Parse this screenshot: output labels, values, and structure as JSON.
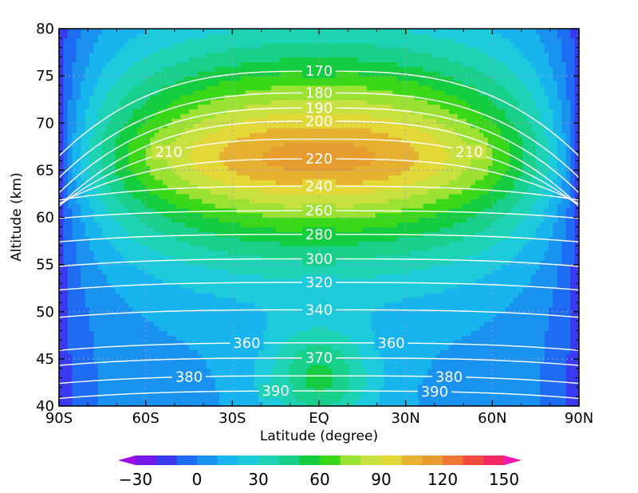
{
  "chart_data": {
    "type": "heatmap",
    "title": "",
    "xlabel": "Latitude (degree)",
    "ylabel": "Altitude (km)",
    "xlim": [
      -90,
      90
    ],
    "ylim": [
      40,
      80
    ],
    "x_ticks": [
      {
        "value": -90,
        "label": "90S"
      },
      {
        "value": -60,
        "label": "60S"
      },
      {
        "value": -30,
        "label": "30S"
      },
      {
        "value": 0,
        "label": "EQ"
      },
      {
        "value": 30,
        "label": "30N"
      },
      {
        "value": 60,
        "label": "60N"
      },
      {
        "value": 90,
        "label": "90N"
      }
    ],
    "y_ticks": [
      {
        "value": 40,
        "label": "40"
      },
      {
        "value": 45,
        "label": "45"
      },
      {
        "value": 50,
        "label": "50"
      },
      {
        "value": 55,
        "label": "55"
      },
      {
        "value": 60,
        "label": "60"
      },
      {
        "value": 65,
        "label": "65"
      },
      {
        "value": 70,
        "label": "70"
      },
      {
        "value": 75,
        "label": "75"
      },
      {
        "value": 80,
        "label": "80"
      }
    ],
    "grid": true,
    "shading": {
      "levels": [
        -30,
        -20,
        -10,
        0,
        10,
        20,
        30,
        40,
        50,
        60,
        70,
        80,
        90,
        100,
        110,
        120,
        130,
        140,
        150
      ],
      "colors": [
        "#a010e6",
        "#7818e8",
        "#3a3af0",
        "#1e6cf2",
        "#1a92f0",
        "#18b4ee",
        "#1ccadc",
        "#1ed2b4",
        "#18d08a",
        "#14cc40",
        "#3ad818",
        "#9ce234",
        "#c8e040",
        "#e4d838",
        "#e6b030",
        "#e69c2e",
        "#ee7834",
        "#f24c40",
        "#f42a62",
        "#f416b0"
      ],
      "colorbar_labels": [
        {
          "value": -30,
          "label": "−30"
        },
        {
          "value": 0,
          "label": "0"
        },
        {
          "value": 30,
          "label": "30"
        },
        {
          "value": 60,
          "label": "60"
        },
        {
          "value": 90,
          "label": "90"
        },
        {
          "value": 120,
          "label": "120"
        },
        {
          "value": 150,
          "label": "150"
        }
      ]
    },
    "contours": [
      {
        "level": 170,
        "label": "170",
        "label_lat": [
          0
        ]
      },
      {
        "level": 180,
        "label": "180",
        "label_lat": [
          0
        ]
      },
      {
        "level": 190,
        "label": "190",
        "label_lat": [
          0
        ]
      },
      {
        "level": 200,
        "label": "200",
        "label_lat": [
          0
        ]
      },
      {
        "level": 210,
        "label": "210",
        "label_lat": [
          -52,
          52
        ]
      },
      {
        "level": 220,
        "label": "220",
        "label_lat": [
          0
        ]
      },
      {
        "level": 240,
        "label": "240",
        "label_lat": [
          0
        ]
      },
      {
        "level": 260,
        "label": "260",
        "label_lat": [
          0
        ]
      },
      {
        "level": 280,
        "label": "280",
        "label_lat": [
          0
        ]
      },
      {
        "level": 300,
        "label": "300",
        "label_lat": [
          0
        ]
      },
      {
        "level": 320,
        "label": "320",
        "label_lat": [
          0
        ]
      },
      {
        "level": 340,
        "label": "340",
        "label_lat": [
          0
        ]
      },
      {
        "level": 360,
        "label": "360",
        "label_lat": [
          -25,
          25
        ]
      },
      {
        "level": 370,
        "label": "370",
        "label_lat": [
          0
        ]
      },
      {
        "level": 380,
        "label": "380",
        "label_lat": [
          -45,
          45
        ]
      },
      {
        "level": 390,
        "label": "390",
        "label_lat": [
          -15,
          40
        ]
      }
    ]
  }
}
